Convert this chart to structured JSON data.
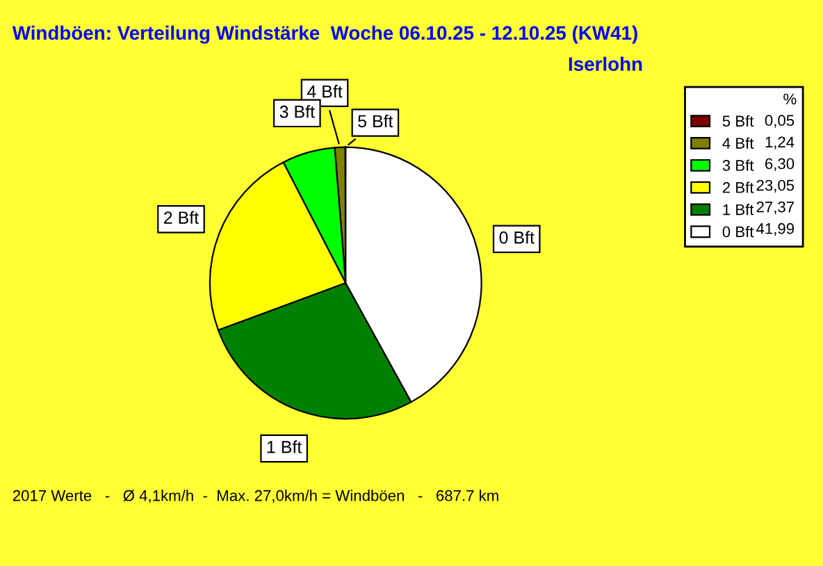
{
  "chart_data": {
    "type": "pie",
    "title": "Windböen: Verteilung Windstärke  Woche 06.10.25 - 12.10.25 (KW41)",
    "subtitle": "Iserlohn",
    "legend_title": "%",
    "categories": [
      "5 Bft",
      "4 Bft",
      "3 Bft",
      "2 Bft",
      "1 Bft",
      "0 Bft"
    ],
    "values": [
      0.05,
      1.24,
      6.3,
      23.05,
      27.37,
      41.99
    ],
    "value_labels": [
      "0,05",
      "1,24",
      "6,30",
      "23,05",
      "27,37",
      "41,99"
    ],
    "colors": [
      "#800000",
      "#808000",
      "#00ff00",
      "#ffff00",
      "#008000",
      "#ffffff"
    ],
    "legend": "top right",
    "annotations": [
      "2017 Werte   -   Ø 4,1km/h  -  Max. 27,0km/h = Windböen   -   687.7 km"
    ]
  }
}
